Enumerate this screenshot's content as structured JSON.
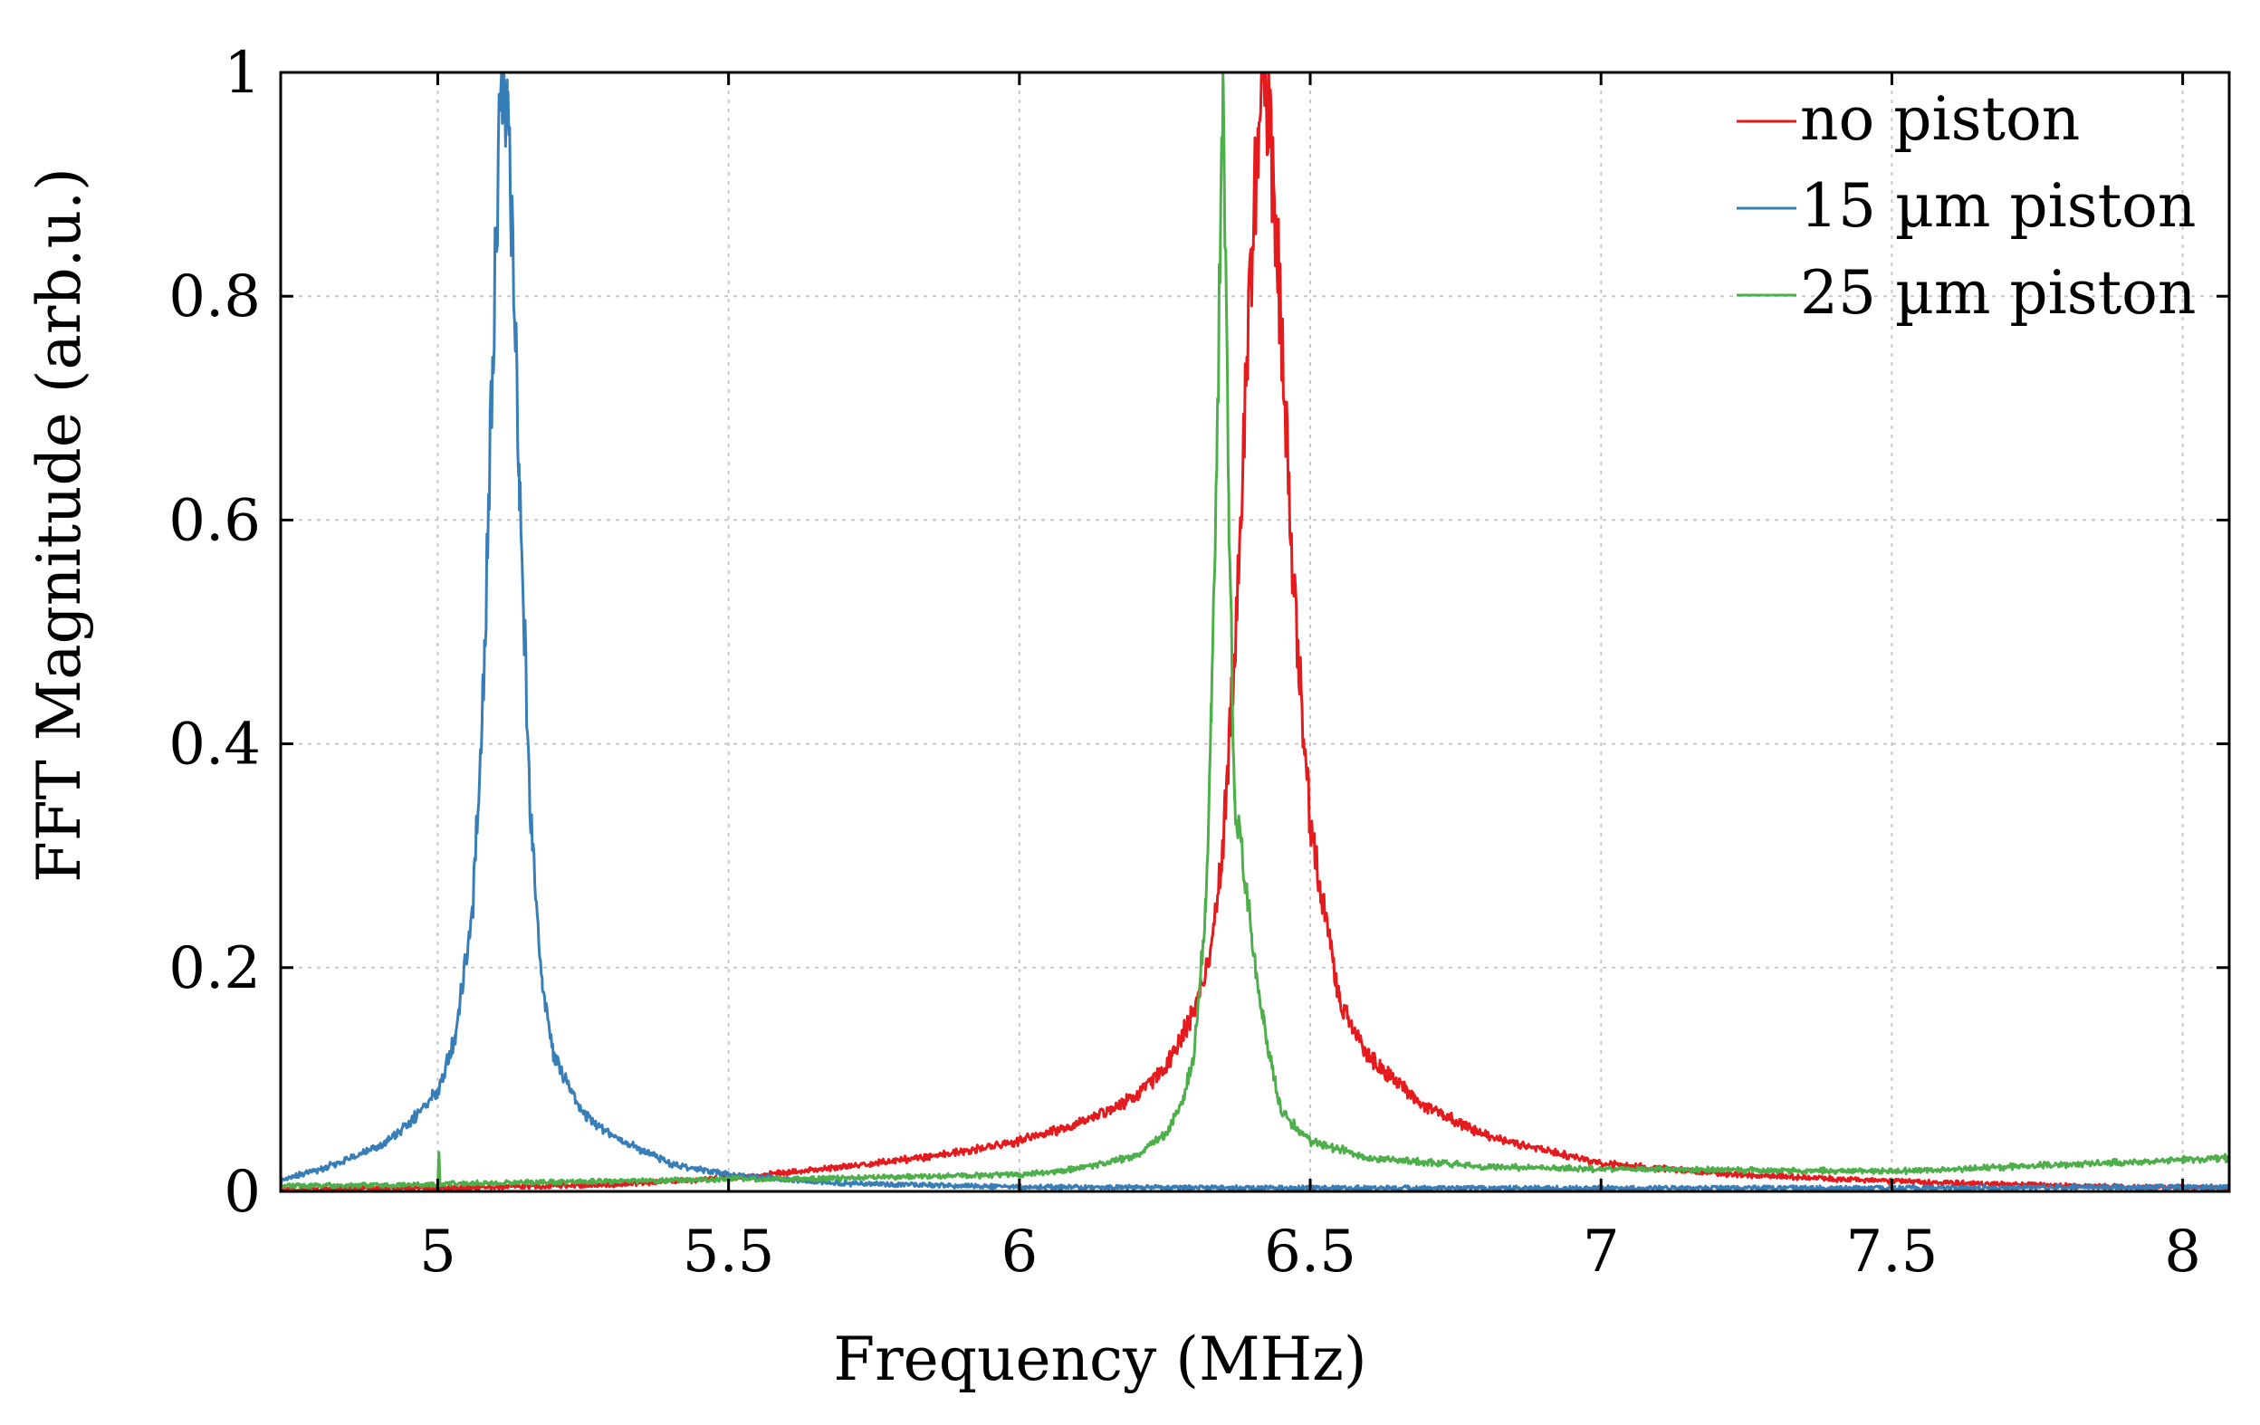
{
  "chart_data": {
    "type": "line",
    "title": "",
    "xlabel": "Frequency (MHz)",
    "ylabel": "FFT Magnitude (arb.u.)",
    "xlim": [
      4.73,
      8.08
    ],
    "ylim": [
      0,
      1
    ],
    "grid": true,
    "legend_position": "top-right",
    "xticks": [
      5,
      5.5,
      6,
      6.5,
      7,
      7.5,
      8
    ],
    "xtick_labels": [
      "5",
      "5.5",
      "6",
      "6.5",
      "7",
      "7.5",
      "8"
    ],
    "yticks": [
      0,
      0.2,
      0.4,
      0.6,
      0.8,
      1
    ],
    "ytick_labels": [
      "0",
      "0.2",
      "0.4",
      "0.6",
      "0.8",
      "1"
    ],
    "series": [
      {
        "name": "no piston",
        "color": "#e41a1c",
        "x": [
          4.73,
          5.0,
          5.3,
          5.5,
          5.7,
          5.9,
          6.0,
          6.1,
          6.2,
          6.25,
          6.3,
          6.33,
          6.35,
          6.37,
          6.39,
          6.41,
          6.42,
          6.43,
          6.45,
          6.47,
          6.5,
          6.55,
          6.6,
          6.7,
          6.8,
          7.0,
          7.2,
          7.5,
          7.8,
          8.08
        ],
        "values": [
          0.002,
          0.003,
          0.006,
          0.012,
          0.022,
          0.035,
          0.045,
          0.06,
          0.085,
          0.11,
          0.16,
          0.22,
          0.31,
          0.48,
          0.72,
          0.95,
          1.0,
          0.96,
          0.78,
          0.55,
          0.33,
          0.17,
          0.12,
          0.075,
          0.05,
          0.025,
          0.016,
          0.009,
          0.005,
          0.003
        ]
      },
      {
        "name": "15 µm piston",
        "color": "#377eb8",
        "x": [
          4.73,
          4.8,
          4.9,
          4.95,
          5.0,
          5.03,
          5.06,
          5.08,
          5.1,
          5.11,
          5.12,
          5.13,
          5.14,
          5.16,
          5.18,
          5.2,
          5.25,
          5.3,
          5.4,
          5.5,
          5.7,
          6.0,
          6.5,
          7.0,
          7.5,
          8.08
        ],
        "values": [
          0.01,
          0.02,
          0.04,
          0.06,
          0.09,
          0.14,
          0.25,
          0.47,
          0.85,
          1.0,
          0.95,
          0.82,
          0.65,
          0.33,
          0.18,
          0.12,
          0.07,
          0.05,
          0.025,
          0.015,
          0.007,
          0.004,
          0.003,
          0.003,
          0.003,
          0.004
        ]
      },
      {
        "name": "25 µm piston",
        "color": "#4daf4a",
        "x": [
          4.73,
          5.0,
          5.002,
          5.004,
          5.3,
          5.5,
          5.7,
          6.0,
          6.1,
          6.2,
          6.25,
          6.28,
          6.3,
          6.32,
          6.33,
          6.34,
          6.35,
          6.36,
          6.37,
          6.39,
          6.4,
          6.42,
          6.45,
          6.5,
          6.6,
          6.8,
          7.0,
          7.5,
          7.8,
          8.08
        ],
        "values": [
          0.005,
          0.006,
          0.035,
          0.007,
          0.009,
          0.011,
          0.012,
          0.015,
          0.02,
          0.032,
          0.05,
          0.08,
          0.12,
          0.25,
          0.42,
          0.68,
          1.0,
          0.62,
          0.35,
          0.27,
          0.22,
          0.15,
          0.07,
          0.045,
          0.03,
          0.022,
          0.02,
          0.018,
          0.024,
          0.03
        ]
      }
    ]
  }
}
